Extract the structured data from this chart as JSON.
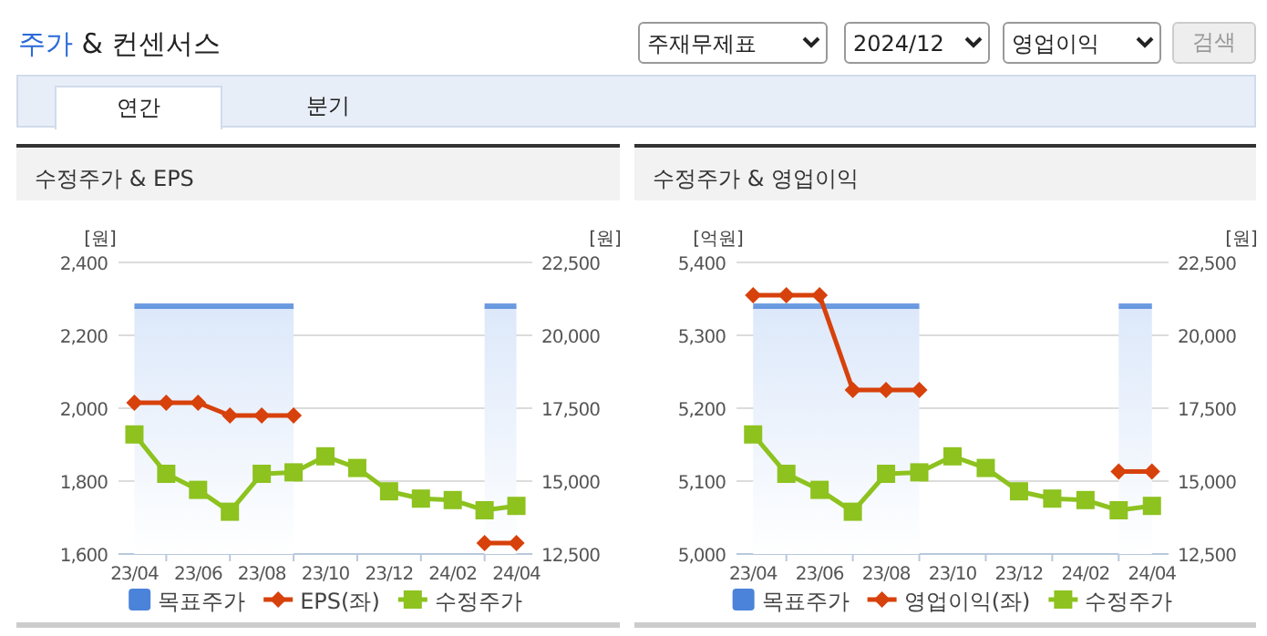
{
  "chart_data": [
    {
      "type": "other",
      "title": "주가 & 컨센서스",
      "annotations": [
        "주재무제표",
        "2024/12",
        "영업이익",
        "검색",
        "연간",
        "분기"
      ]
    },
    {
      "type": "line",
      "title": "수정주가 & EPS",
      "ylabel": "[원]",
      "y2label": "[원]",
      "categories": [
        "23/04",
        null,
        "23/06",
        null,
        "23/08",
        null,
        "23/10",
        null,
        "23/12",
        null,
        "24/02",
        null,
        "24/04"
      ],
      "ylim": [
        1600,
        2400
      ],
      "yticks": [
        {
          "value": 1600,
          "label": "1,600"
        },
        {
          "value": 1800,
          "label": "1,800"
        },
        {
          "value": 2000,
          "label": "2,000"
        },
        {
          "value": 2200,
          "label": "2,200"
        },
        {
          "value": 2400,
          "label": "2,400"
        }
      ],
      "y2lim": [
        12500,
        22500
      ],
      "y2ticks": [
        {
          "value": 12500,
          "label": "12,500"
        },
        {
          "value": 15000,
          "label": "15,000"
        },
        {
          "value": 17500,
          "label": "17,500"
        },
        {
          "value": 20000,
          "label": "20,000"
        },
        {
          "value": 22500,
          "label": "22,500"
        }
      ],
      "grid": "y",
      "legend": "bottom",
      "series": [
        {
          "name": "목표주가",
          "type": "area",
          "axis": "y2",
          "color": "#4a83d9",
          "values": [
            21000,
            21000,
            21000,
            21000,
            21000,
            21000,
            null,
            null,
            null,
            null,
            null,
            21000,
            21000
          ]
        },
        {
          "name": "EPS(좌)",
          "type": "line",
          "marker": "diamond",
          "color": "#d7410b",
          "values": [
            2015,
            2015,
            2015,
            1980,
            1980,
            1980,
            null,
            null,
            null,
            null,
            null,
            1630,
            1630
          ]
        },
        {
          "name": "수정주가",
          "type": "line",
          "marker": "square",
          "axis": "y2",
          "color": "#8dc21f",
          "values": [
            16600,
            15250,
            14700,
            13950,
            15250,
            15300,
            15850,
            15450,
            14650,
            14400,
            14350,
            14000,
            14150
          ]
        }
      ]
    },
    {
      "type": "line",
      "title": "수정주가 & 영업이익",
      "ylabel": "[억원]",
      "y2label": "[원]",
      "categories": [
        "23/04",
        null,
        "23/06",
        null,
        "23/08",
        null,
        "23/10",
        null,
        "23/12",
        null,
        "24/02",
        null,
        "24/04"
      ],
      "ylim": [
        5000,
        5400
      ],
      "yticks": [
        {
          "value": 5000,
          "label": "5,000"
        },
        {
          "value": 5100,
          "label": "5,100"
        },
        {
          "value": 5200,
          "label": "5,200"
        },
        {
          "value": 5300,
          "label": "5,300"
        },
        {
          "value": 5400,
          "label": "5,400"
        }
      ],
      "y2lim": [
        12500,
        22500
      ],
      "y2ticks": [
        {
          "value": 12500,
          "label": "12,500"
        },
        {
          "value": 15000,
          "label": "15,000"
        },
        {
          "value": 17500,
          "label": "17,500"
        },
        {
          "value": 20000,
          "label": "20,000"
        },
        {
          "value": 22500,
          "label": "22,500"
        }
      ],
      "grid": "y",
      "legend": "bottom",
      "series": [
        {
          "name": "목표주가",
          "type": "area",
          "axis": "y2",
          "color": "#4a83d9",
          "values": [
            21000,
            21000,
            21000,
            21000,
            21000,
            21000,
            null,
            null,
            null,
            null,
            null,
            21000,
            21000
          ]
        },
        {
          "name": "영업이익(좌)",
          "type": "line",
          "marker": "diamond",
          "color": "#d7410b",
          "values": [
            5355,
            5355,
            5355,
            5225,
            5225,
            5225,
            null,
            null,
            null,
            null,
            null,
            5113,
            5113
          ]
        },
        {
          "name": "수정주가",
          "type": "line",
          "marker": "square",
          "axis": "y2",
          "color": "#8dc21f",
          "values": [
            16600,
            15250,
            14700,
            13950,
            15250,
            15300,
            15850,
            15450,
            14650,
            14400,
            14350,
            14000,
            14150
          ]
        }
      ]
    }
  ]
}
